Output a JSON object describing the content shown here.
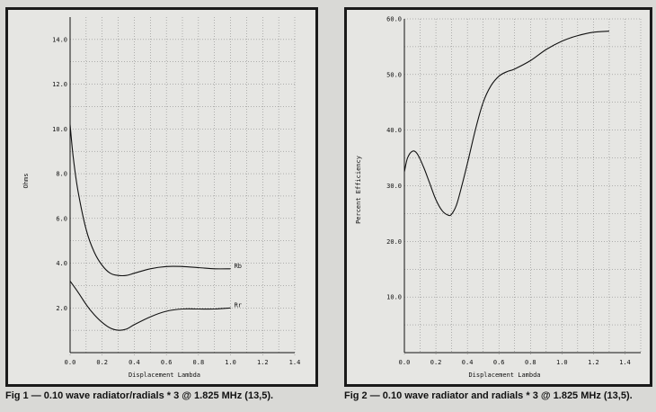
{
  "chart_data": [
    {
      "type": "line",
      "title": "",
      "xlabel": "Displacement Lambda",
      "ylabel": "Ohms",
      "xlim": [
        0.0,
        1.4
      ],
      "ylim": [
        0.0,
        15.0
      ],
      "x_ticks": [
        "0.0",
        "0.2",
        "0.4",
        "0.6",
        "0.8",
        "1.0",
        "1.2",
        "1.4"
      ],
      "y_ticks": [
        "2.0",
        "4.0",
        "6.0",
        "8.0",
        "10.0",
        "12.0",
        "14.0"
      ],
      "series": [
        {
          "name": "Rb",
          "x": [
            0.0,
            0.02,
            0.05,
            0.1,
            0.15,
            0.2,
            0.25,
            0.3,
            0.35,
            0.4,
            0.5,
            0.6,
            0.7,
            0.8,
            0.9,
            1.0
          ],
          "y": [
            10.2,
            8.7,
            7.2,
            5.5,
            4.5,
            3.9,
            3.55,
            3.45,
            3.45,
            3.55,
            3.75,
            3.85,
            3.85,
            3.8,
            3.75,
            3.75
          ]
        },
        {
          "name": "Rr",
          "x": [
            0.0,
            0.05,
            0.1,
            0.15,
            0.2,
            0.25,
            0.3,
            0.35,
            0.4,
            0.5,
            0.6,
            0.7,
            0.8,
            0.9,
            1.0
          ],
          "y": [
            3.2,
            2.7,
            2.15,
            1.7,
            1.35,
            1.1,
            1.0,
            1.05,
            1.25,
            1.6,
            1.85,
            1.95,
            1.95,
            1.95,
            2.0
          ]
        }
      ]
    },
    {
      "type": "line",
      "title": "",
      "xlabel": "Displacement Lambda",
      "ylabel": "Percent Efficiency",
      "xlim": [
        0.0,
        1.5
      ],
      "ylim": [
        0.0,
        60.0
      ],
      "x_ticks": [
        "0.0",
        "0.2",
        "0.4",
        "0.6",
        "0.8",
        "1.0",
        "1.2",
        "1.4"
      ],
      "y_ticks": [
        "10.0",
        "20.0",
        "30.0",
        "40.0",
        "50.0",
        "60.0"
      ],
      "series": [
        {
          "x": [
            0.0,
            0.02,
            0.05,
            0.08,
            0.12,
            0.16,
            0.2,
            0.24,
            0.28,
            0.3,
            0.33,
            0.36,
            0.4,
            0.45,
            0.5,
            0.55,
            0.6,
            0.65,
            0.7,
            0.8,
            0.9,
            1.0,
            1.1,
            1.2,
            1.3
          ],
          "y": [
            32.5,
            35.0,
            36.2,
            35.8,
            33.5,
            30.5,
            27.5,
            25.5,
            24.7,
            24.9,
            26.5,
            29.5,
            34.0,
            40.0,
            45.0,
            48.0,
            49.7,
            50.5,
            51.0,
            52.5,
            54.5,
            56.0,
            57.0,
            57.6,
            57.8
          ]
        }
      ]
    }
  ],
  "captions": {
    "fig1": "Fig 1 — 0.10 wave radiator/radials * 3 @ 1.825 MHz (13,5).",
    "fig2": "Fig 2 — 0.10 wave radiator and radials * 3 @ 1.825 MHz (13,5)."
  }
}
